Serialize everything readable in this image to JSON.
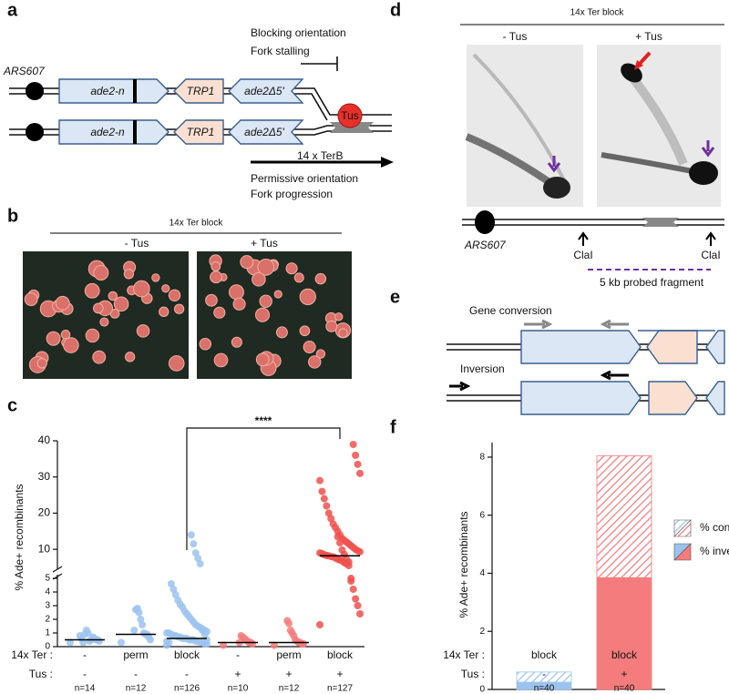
{
  "panel_labels": [
    "a",
    "b",
    "c",
    "d",
    "e",
    "f"
  ],
  "panel_a": {
    "ars": "ARS607",
    "genes": [
      "ade2-n",
      "TRP1",
      "ade2Δ5'"
    ],
    "blocking": [
      "Blocking orientation",
      "Fork stalling"
    ],
    "tus": "Tus",
    "ter": "14 x TerB",
    "permissive": [
      "Permissive orientation",
      "Fork progression"
    ]
  },
  "panel_b": {
    "title": "14x Ter block",
    "conditions": [
      "- Tus",
      "+ Tus"
    ]
  },
  "panel_d": {
    "title": "14x Ter block",
    "conditions": [
      "- Tus",
      "+ Tus"
    ],
    "ars": "ARS607",
    "site": "ClaI",
    "fragment": "5 kb probed fragment"
  },
  "panel_e": {
    "labels": [
      "Gene conversion",
      "Inversion"
    ]
  },
  "chart_data": [
    {
      "type": "strip",
      "ylabel": "% Ade+ recombinants",
      "ylim": [
        0,
        40
      ],
      "ybreak": 5,
      "yticks": [
        0,
        1,
        2,
        3,
        4,
        5,
        10,
        20,
        30,
        40
      ],
      "row_labels": [
        "14x Ter :",
        "Tus :"
      ],
      "ter": [
        "-",
        "perm",
        "block",
        "-",
        "perm",
        "block"
      ],
      "tus": [
        "-",
        "-",
        "-",
        "+",
        "+",
        "+"
      ],
      "n_labels": [
        "n=14",
        "n=12",
        "n=126",
        "n=10",
        "n=12",
        "n=127"
      ],
      "significance": {
        "groups": [
          2,
          5
        ],
        "label": "****"
      },
      "groups": [
        {
          "color": "#9cc3ee",
          "median": 0.5,
          "values": [
            0.3,
            0.4,
            0.5,
            0.5,
            0.6,
            0.7,
            0.5,
            0.4,
            1.0,
            1.2,
            0.9,
            0.3,
            0.6,
            0.8
          ]
        },
        {
          "color": "#9cc3ee",
          "median": 0.9,
          "values": [
            0.3,
            0.5,
            0.7,
            0.9,
            0.9,
            1.0,
            1.6,
            2.0,
            2.5,
            2.8,
            2.7,
            1.2
          ]
        },
        {
          "color": "#9cc3ee",
          "median": 0.6,
          "values": [
            0.1,
            0.2,
            0.2,
            0.3,
            0.3,
            0.4,
            0.4,
            0.5,
            0.5,
            0.5,
            0.6,
            0.6,
            0.6,
            0.7,
            0.7,
            0.8,
            0.8,
            0.9,
            1.0,
            1.0,
            1.1,
            1.2,
            1.3,
            1.4,
            1.5,
            1.6,
            1.8,
            2.0,
            2.2,
            2.4,
            2.6,
            2.9,
            3.1,
            3.4,
            3.8,
            4.2,
            4.6,
            0.3,
            0.4,
            0.5,
            0.9,
            1.2,
            6.0,
            7.5,
            9.0,
            11.5,
            14.0
          ]
        },
        {
          "color": "#f47c7c",
          "median": 0.3,
          "values": [
            0.1,
            0.2,
            0.3,
            0.3,
            0.4,
            0.5,
            0.6,
            0.7,
            0.8,
            0.3
          ]
        },
        {
          "color": "#f47c7c",
          "median": 0.3,
          "values": [
            0.1,
            0.2,
            0.2,
            0.3,
            0.3,
            0.4,
            0.5,
            0.8,
            1.0,
            1.2,
            1.7,
            1.9
          ]
        },
        {
          "color": "#f0504c",
          "median": 8.2,
          "values": [
            1.6,
            2.4,
            3.0,
            3.5,
            4.2,
            4.8,
            5.5,
            6.0,
            6.3,
            6.8,
            7.0,
            7.3,
            7.6,
            7.9,
            8.0,
            8.2,
            8.3,
            8.5,
            8.8,
            9.0,
            9.3,
            9.6,
            10.0,
            10.5,
            11.0,
            11.5,
            12.0,
            12.5,
            13.0,
            14.0,
            15.0,
            16.0,
            17.0,
            18.5,
            20.0,
            22.0,
            24.0,
            26.0,
            29.0,
            31.0,
            33.5,
            36.0,
            39.0,
            5.0,
            6.5,
            7.2,
            8.6,
            9.8,
            11.8,
            13.5
          ]
        }
      ]
    },
    {
      "type": "stacked_bar",
      "ylabel": "% Ade+ recombinants",
      "ylim": [
        0,
        8.5
      ],
      "yticks": [
        0,
        2,
        4,
        6,
        8
      ],
      "row_labels": [
        "14x Ter :",
        "Tus :"
      ],
      "ter": [
        "block",
        "block"
      ],
      "tus": [
        "-",
        "+"
      ],
      "n_labels": [
        "n=40",
        "n=40"
      ],
      "bar_colors": [
        "#9cc3ee",
        "#f47c7c"
      ],
      "series": [
        {
          "name": "% inversions",
          "pattern": "solid",
          "values": [
            0.25,
            3.85
          ]
        },
        {
          "name": "% conversions",
          "pattern": "hatch",
          "values": [
            0.35,
            4.2
          ]
        }
      ]
    }
  ]
}
